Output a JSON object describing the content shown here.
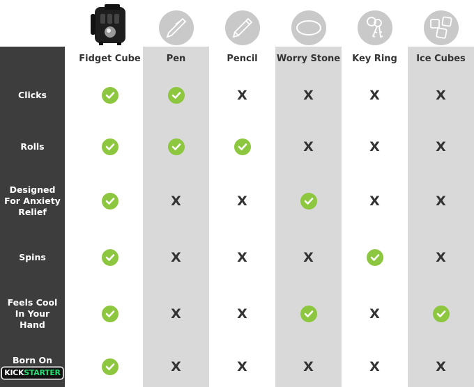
{
  "colors": {
    "sidebar": "#3d3d3d",
    "gray_column": "#d9d9d9",
    "check": "#8dc63f",
    "x": "#333333",
    "kickstarter_green": "#2bde73"
  },
  "columns": [
    {
      "label": "Fidget Cube",
      "icon": "fidget-cube-photo"
    },
    {
      "label": "Pen",
      "icon": "pen-icon"
    },
    {
      "label": "Pencil",
      "icon": "pencil-icon"
    },
    {
      "label": "Worry Stone",
      "icon": "stone-icon"
    },
    {
      "label": "Key Ring",
      "icon": "keys-icon"
    },
    {
      "label": "Ice Cubes",
      "icon": "ice-cubes-icon"
    }
  ],
  "rows": [
    {
      "label": "Clicks",
      "values": [
        true,
        true,
        false,
        false,
        false,
        false
      ]
    },
    {
      "label": "Rolls",
      "values": [
        true,
        true,
        true,
        false,
        false,
        false
      ]
    },
    {
      "label": "Designed For Anxiety Relief",
      "values": [
        true,
        false,
        false,
        true,
        false,
        false
      ]
    },
    {
      "label": "Spins",
      "values": [
        true,
        false,
        false,
        false,
        true,
        false
      ]
    },
    {
      "label": "Feels Cool In Your Hand",
      "values": [
        true,
        false,
        false,
        true,
        false,
        true
      ]
    },
    {
      "label": "Born On",
      "logo": {
        "kick": "KICK",
        "starter": "STARTER"
      },
      "values": [
        true,
        false,
        false,
        false,
        false,
        false
      ]
    }
  ],
  "x_mark": "X"
}
